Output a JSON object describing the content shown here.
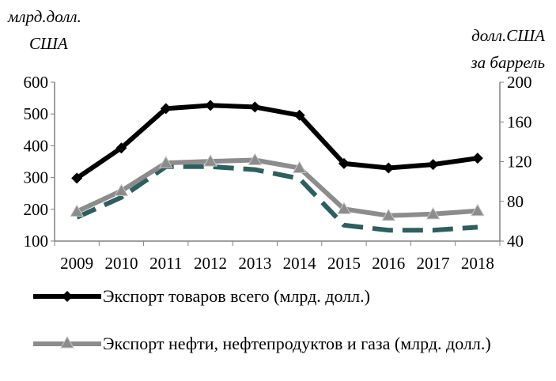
{
  "units": {
    "left_line1": "млрд.долл.",
    "left_line2": "США",
    "right_line1": "долл.США",
    "right_line2": "за баррель"
  },
  "chart_data": {
    "type": "line",
    "categories": [
      "2009",
      "2010",
      "2011",
      "2012",
      "2013",
      "2014",
      "2015",
      "2016",
      "2017",
      "2018"
    ],
    "y_left": {
      "ylim": [
        100,
        600
      ],
      "ticks": [
        "100",
        "200",
        "300",
        "400",
        "500",
        "600"
      ]
    },
    "y_right": {
      "ylim": [
        40,
        200
      ],
      "ticks": [
        "40",
        "80",
        "120",
        "160",
        "200"
      ]
    },
    "grid": false,
    "series": [
      {
        "name": "Экспорт товаров всего (млрд. долл.)",
        "axis": "left",
        "color": "#000000",
        "marker": "diamond",
        "style": "solid",
        "values": [
          298,
          393,
          517,
          527,
          522,
          496,
          344,
          330,
          341,
          361
        ]
      },
      {
        "name": "Экспорт нефти, нефтепродуктов и газа (млрд. долл.)",
        "axis": "left",
        "color": "#8c8c8c",
        "marker": "triangle",
        "style": "solid",
        "values": [
          193,
          258,
          346,
          351,
          355,
          330,
          201,
          180,
          185,
          195
        ]
      },
      {
        "axis": "right",
        "color": "#2e5f5f",
        "marker": "none",
        "style": "dashed",
        "values": [
          64,
          84,
          115,
          115,
          112,
          103,
          56,
          51,
          51,
          54
        ]
      }
    ]
  },
  "legend": [
    {
      "label": "Экспорт товаров всего (млрд. долл.)",
      "color": "#000000",
      "marker": "diamond"
    },
    {
      "label": "Экспорт нефти, нефтепродуктов и газа (млрд. долл.)",
      "color": "#8c8c8c",
      "marker": "triangle"
    }
  ]
}
